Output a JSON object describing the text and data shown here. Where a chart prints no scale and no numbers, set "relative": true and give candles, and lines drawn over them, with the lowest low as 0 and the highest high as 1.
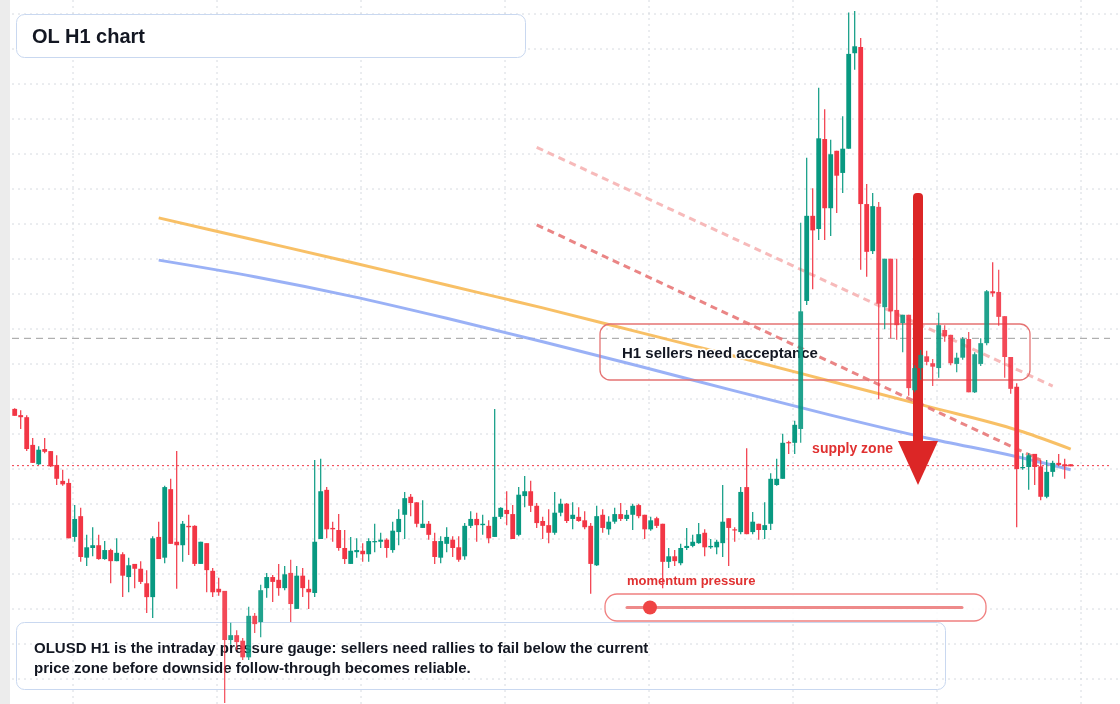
{
  "chart_data": {
    "type": "candlestick",
    "title": "OL H1 chart",
    "relative": true,
    "grid": true,
    "annotations": [
      "H1 sellers need acceptance",
      "supply zone",
      "momentum pressure",
      "OLUSD H1 is the intraday pressure gauge: sellers need rallies to fail below the current price zone before downside follow-through becomes reliable."
    ],
    "ref_lines": [
      {
        "axis": "y",
        "value": 0.527,
        "color": "#9e9e9e",
        "line_style": "dashed"
      },
      {
        "axis": "y",
        "value": 0.343,
        "color": "#f23645",
        "line_style": "dotted"
      }
    ],
    "categories": [
      null,
      null,
      null,
      null,
      null,
      null,
      null,
      null,
      null,
      null,
      null,
      null,
      null,
      null,
      null,
      null,
      null,
      null,
      null,
      null,
      null,
      null,
      null,
      null,
      null,
      null,
      null,
      null,
      null,
      null,
      null,
      null,
      null,
      null,
      null,
      null,
      null,
      null,
      null,
      null,
      null,
      null,
      null,
      null,
      null,
      null,
      null,
      null,
      null,
      null,
      null,
      null,
      null,
      null,
      null,
      null,
      null,
      null,
      null,
      null,
      null,
      null,
      null,
      null,
      null,
      null,
      null,
      null,
      null,
      null,
      null,
      null,
      null,
      null,
      null,
      null,
      null,
      null,
      null,
      null,
      null,
      null,
      null,
      null,
      null,
      null,
      null,
      null,
      null,
      null,
      null,
      null,
      null,
      null,
      null,
      null,
      null,
      null,
      null,
      null,
      null,
      null,
      null,
      null,
      null,
      null,
      null,
      null,
      null,
      null,
      null,
      null,
      null,
      null,
      null,
      null,
      null,
      null,
      null,
      null,
      null,
      null,
      null,
      null,
      null,
      null,
      null,
      null,
      null,
      null,
      null,
      null,
      null,
      null,
      null,
      null,
      null,
      null,
      null,
      null,
      null,
      null,
      null,
      null,
      null,
      null,
      null,
      null,
      null,
      null,
      null,
      null,
      null,
      null,
      null,
      null,
      null,
      null,
      null,
      null,
      null,
      null,
      null,
      null,
      null,
      null,
      null,
      null,
      null,
      null,
      null,
      null,
      null,
      null,
      null,
      null,
      null
    ],
    "ohlc": [
      [
        0.425,
        0.426,
        0.415,
        0.415
      ],
      [
        0.416,
        0.423,
        0.396,
        0.413
      ],
      [
        0.413,
        0.416,
        0.364,
        0.367
      ],
      [
        0.373,
        0.383,
        0.347,
        0.347
      ],
      [
        0.345,
        0.371,
        0.344,
        0.366
      ],
      [
        0.367,
        0.383,
        0.361,
        0.363
      ],
      [
        0.364,
        0.364,
        0.341,
        0.342
      ],
      [
        0.344,
        0.358,
        0.315,
        0.324
      ],
      [
        0.321,
        0.337,
        0.314,
        0.316
      ],
      [
        0.318,
        0.324,
        0.238,
        0.238
      ],
      [
        0.24,
        0.286,
        0.233,
        0.266
      ],
      [
        0.27,
        0.282,
        0.204,
        0.211
      ],
      [
        0.21,
        0.243,
        0.198,
        0.225
      ],
      [
        0.224,
        0.254,
        0.212,
        0.228
      ],
      [
        0.228,
        0.243,
        0.207,
        0.208
      ],
      [
        0.208,
        0.234,
        0.207,
        0.221
      ],
      [
        0.221,
        0.223,
        0.173,
        0.205
      ],
      [
        0.205,
        0.238,
        0.205,
        0.217
      ],
      [
        0.215,
        0.218,
        0.153,
        0.184
      ],
      [
        0.182,
        0.21,
        0.16,
        0.199
      ],
      [
        0.201,
        0.201,
        0.166,
        0.194
      ],
      [
        0.194,
        0.205,
        0.172,
        0.175
      ],
      [
        0.173,
        0.192,
        0.13,
        0.153
      ],
      [
        0.153,
        0.241,
        0.123,
        0.238
      ],
      [
        0.24,
        0.262,
        0.208,
        0.208
      ],
      [
        0.21,
        0.314,
        0.202,
        0.312
      ],
      [
        0.309,
        0.324,
        0.23,
        0.23
      ],
      [
        0.233,
        0.364,
        0.165,
        0.228
      ],
      [
        0.228,
        0.263,
        0.204,
        0.259
      ],
      [
        0.256,
        0.272,
        0.214,
        0.254
      ],
      [
        0.256,
        0.257,
        0.198,
        0.201
      ],
      [
        0.201,
        0.233,
        0.201,
        0.233
      ],
      [
        0.231,
        0.231,
        0.16,
        0.192
      ],
      [
        0.191,
        0.195,
        0.153,
        0.16
      ],
      [
        0.165,
        0.181,
        0.155,
        0.16
      ],
      [
        0.162,
        0.162,
        0,
        0.091
      ],
      [
        0.091,
        0.116,
        0.084,
        0.098
      ],
      [
        0.098,
        0.105,
        0.077,
        0.088
      ],
      [
        0.09,
        0.094,
        0.062,
        0.066
      ],
      [
        0.066,
        0.139,
        0.062,
        0.126
      ],
      [
        0.126,
        0.13,
        0.101,
        0.114
      ],
      [
        0.117,
        0.171,
        0.095,
        0.163
      ],
      [
        0.166,
        0.188,
        0.152,
        0.182
      ],
      [
        0.182,
        0.185,
        0.146,
        0.175
      ],
      [
        0.178,
        0.201,
        0.155,
        0.166
      ],
      [
        0.166,
        0.198,
        0.163,
        0.186
      ],
      [
        0.188,
        0.207,
        0.117,
        0.143
      ],
      [
        0.136,
        0.198,
        0.136,
        0.184
      ],
      [
        0.184,
        0.195,
        0.153,
        0.166
      ],
      [
        0.165,
        0.178,
        0.136,
        0.16
      ],
      [
        0.159,
        0.351,
        0.153,
        0.233
      ],
      [
        0.237,
        0.353,
        0.237,
        0.306
      ],
      [
        0.308,
        0.312,
        0.238,
        0.251
      ],
      [
        0.253,
        0.262,
        0.233,
        0.251
      ],
      [
        0.25,
        0.273,
        0.22,
        0.224
      ],
      [
        0.224,
        0.25,
        0.201,
        0.208
      ],
      [
        0.201,
        0.24,
        0.201,
        0.22
      ],
      [
        0.218,
        0.238,
        0.21,
        0.221
      ],
      [
        0.22,
        0.231,
        0.204,
        0.215
      ],
      [
        0.215,
        0.238,
        0.204,
        0.234
      ],
      [
        0.233,
        0.259,
        0.218,
        0.234
      ],
      [
        0.233,
        0.246,
        0.224,
        0.236
      ],
      [
        0.236,
        0.238,
        0.21,
        0.224
      ],
      [
        0.221,
        0.262,
        0.217,
        0.249
      ],
      [
        0.247,
        0.28,
        0.228,
        0.266
      ],
      [
        0.272,
        0.305,
        0.237,
        0.296
      ],
      [
        0.298,
        0.302,
        0.27,
        0.289
      ],
      [
        0.29,
        0.29,
        0.254,
        0.259
      ],
      [
        0.253,
        0.293,
        0.253,
        0.259
      ],
      [
        0.259,
        0.263,
        0.236,
        0.243
      ],
      [
        0.234,
        0.246,
        0.201,
        0.211
      ],
      [
        0.21,
        0.241,
        0.202,
        0.234
      ],
      [
        0.23,
        0.254,
        0.218,
        0.24
      ],
      [
        0.236,
        0.241,
        0.211,
        0.224
      ],
      [
        0.225,
        0.241,
        0.204,
        0.207
      ],
      [
        0.212,
        0.26,
        0.207,
        0.256
      ],
      [
        0.256,
        0.277,
        0.253,
        0.266
      ],
      [
        0.266,
        0.275,
        0.233,
        0.257
      ],
      [
        0.257,
        0.272,
        0.243,
        0.259
      ],
      [
        0.256,
        0.264,
        0.231,
        0.238
      ],
      [
        0.24,
        0.425,
        0.24,
        0.269
      ],
      [
        0.269,
        0.283,
        0.266,
        0.282
      ],
      [
        0.279,
        0.306,
        0.257,
        0.273
      ],
      [
        0.273,
        0.286,
        0.237,
        0.237
      ],
      [
        0.243,
        0.312,
        0.241,
        0.301
      ],
      [
        0.299,
        0.328,
        0.283,
        0.306
      ],
      [
        0.306,
        0.321,
        0.276,
        0.285
      ],
      [
        0.285,
        0.289,
        0.253,
        0.26
      ],
      [
        0.263,
        0.269,
        0.237,
        0.256
      ],
      [
        0.257,
        0.28,
        0.231,
        0.246
      ],
      [
        0.246,
        0.305,
        0.243,
        0.275
      ],
      [
        0.275,
        0.295,
        0.27,
        0.288
      ],
      [
        0.288,
        0.289,
        0.26,
        0.263
      ],
      [
        0.266,
        0.29,
        0.251,
        0.272
      ],
      [
        0.269,
        0.283,
        0.262,
        0.263
      ],
      [
        0.264,
        0.277,
        0.251,
        0.254
      ],
      [
        0.256,
        0.26,
        0.158,
        0.201
      ],
      [
        0.199,
        0.285,
        0.198,
        0.27
      ],
      [
        0.272,
        0.28,
        0.246,
        0.253
      ],
      [
        0.251,
        0.27,
        0.243,
        0.262
      ],
      [
        0.262,
        0.282,
        0.259,
        0.273
      ],
      [
        0.273,
        0.289,
        0.263,
        0.266
      ],
      [
        0.266,
        0.279,
        0.263,
        0.272
      ],
      [
        0.272,
        0.288,
        0.25,
        0.285
      ],
      [
        0.286,
        0.288,
        0.267,
        0.27
      ],
      [
        0.272,
        0.272,
        0.237,
        0.251
      ],
      [
        0.251,
        0.269,
        0.249,
        0.264
      ],
      [
        0.267,
        0.269,
        0.253,
        0.256
      ],
      [
        0.259,
        0.259,
        0.166,
        0.204
      ],
      [
        0.204,
        0.224,
        0.195,
        0.212
      ],
      [
        0.212,
        0.221,
        0.198,
        0.205
      ],
      [
        0.202,
        0.23,
        0.199,
        0.224
      ],
      [
        0.224,
        0.253,
        0.221,
        0.227
      ],
      [
        0.227,
        0.243,
        0.225,
        0.233
      ],
      [
        0.231,
        0.26,
        0.23,
        0.244
      ],
      [
        0.246,
        0.251,
        0.212,
        0.225
      ],
      [
        0.225,
        0.237,
        0.223,
        0.227
      ],
      [
        0.225,
        0.236,
        0.215,
        0.233
      ],
      [
        0.231,
        0.315,
        0.211,
        0.262
      ],
      [
        0.267,
        0.267,
        0.198,
        0.253
      ],
      [
        0.251,
        0.254,
        0.233,
        0.25
      ],
      [
        0.247,
        0.312,
        0.244,
        0.305
      ],
      [
        0.312,
        0.368,
        0.244,
        0.244
      ],
      [
        0.247,
        0.276,
        0.244,
        0.262
      ],
      [
        0.259,
        0.259,
        0.236,
        0.25
      ],
      [
        0.25,
        0.29,
        0.237,
        0.257
      ],
      [
        0.259,
        0.332,
        0.25,
        0.324
      ],
      [
        0.315,
        0.353,
        0.314,
        0.324
      ],
      [
        0.324,
        0.389,
        0.324,
        0.376
      ],
      [
        0.377,
        0.379,
        0.36,
        0.376
      ],
      [
        0.376,
        0.408,
        0.36,
        0.402
      ],
      [
        0.396,
        0.694,
        0.376,
        0.566
      ],
      [
        0.581,
        0.788,
        0.575,
        0.704
      ],
      [
        0.704,
        0.744,
        0.598,
        0.683
      ],
      [
        0.685,
        0.889,
        0.669,
        0.816
      ],
      [
        0.815,
        0.858,
        0.669,
        0.715
      ],
      [
        0.715,
        0.814,
        0.675,
        0.793
      ],
      [
        0.798,
        0.798,
        0.708,
        0.762
      ],
      [
        0.766,
        0.848,
        0.737,
        0.801
      ],
      [
        0.801,
        0.998,
        0.801,
        0.938
      ],
      [
        0.939,
        1,
        0.915,
        0.949
      ],
      [
        0.948,
        0.961,
        0.626,
        0.721
      ],
      [
        0.721,
        0.75,
        0.616,
        0.652
      ],
      [
        0.653,
        0.737,
        0.649,
        0.718
      ],
      [
        0.717,
        0.724,
        0.439,
        0.577
      ],
      [
        0.572,
        0.642,
        0.54,
        0.642
      ],
      [
        0.642,
        0.642,
        0.527,
        0.566
      ],
      [
        0.568,
        0.642,
        0.525,
        0.546
      ],
      [
        0.549,
        0.561,
        0.507,
        0.561
      ],
      [
        0.561,
        0.561,
        0.444,
        0.455
      ],
      [
        0.452,
        0.488,
        0.449,
        0.484
      ],
      [
        0.484,
        0.51,
        0.467,
        0.503
      ],
      [
        0.501,
        0.509,
        0.488,
        0.493
      ],
      [
        0.491,
        0.497,
        0.458,
        0.486
      ],
      [
        0.484,
        0.564,
        0.47,
        0.546
      ],
      [
        0.539,
        0.546,
        0.522,
        0.53
      ],
      [
        0.532,
        0.532,
        0.488,
        0.491
      ],
      [
        0.49,
        0.506,
        0.478,
        0.499
      ],
      [
        0.499,
        0.529,
        0.496,
        0.526
      ],
      [
        0.526,
        0.536,
        0.449,
        0.449
      ],
      [
        0.449,
        0.507,
        0.448,
        0.504
      ],
      [
        0.49,
        0.527,
        0.487,
        0.52
      ],
      [
        0.52,
        0.597,
        0.517,
        0.595
      ],
      [
        0.595,
        0.637,
        0.587,
        0.592
      ],
      [
        0.594,
        0.626,
        0.545,
        0.558
      ],
      [
        0.559,
        0.559,
        0.47,
        0.5
      ],
      [
        0.5,
        0.5,
        0.447,
        0.454
      ],
      [
        0.457,
        0.462,
        0.254,
        0.338
      ],
      [
        0.34,
        0.361,
        0.337,
        0.341
      ],
      [
        0.341,
        0.361,
        0.308,
        0.358
      ],
      [
        0.36,
        0.36,
        0.315,
        0.341
      ],
      [
        0.342,
        0.351,
        0.293,
        0.298
      ],
      [
        0.298,
        0.351,
        0.296,
        0.334
      ],
      [
        0.334,
        0.35,
        0.327,
        0.347
      ],
      [
        0.347,
        0.36,
        0.342,
        0.344
      ],
      [
        0.345,
        0.353,
        0.324,
        0.342
      ],
      [
        0.345,
        0.345,
        0.342,
        0.342
      ]
    ],
    "series": [
      {
        "type": "line",
        "color": "#f7b955",
        "values": [
          null,
          null,
          null,
          null,
          null,
          null,
          null,
          null,
          null,
          null,
          null,
          null,
          null,
          null,
          null,
          null,
          null,
          null,
          null,
          null,
          null,
          null,
          null,
          null,
          0.701,
          null,
          null,
          null,
          null,
          null,
          null,
          null,
          null,
          null,
          null,
          null,
          null,
          null,
          null,
          null,
          0.669,
          null,
          null,
          null,
          null,
          null,
          null,
          null,
          null,
          null,
          null,
          null,
          null,
          null,
          null,
          null,
          0.637,
          null,
          null,
          null,
          null,
          null,
          null,
          null,
          null,
          null,
          null,
          null,
          null,
          null,
          null,
          null,
          0.604,
          null,
          null,
          null,
          null,
          null,
          null,
          null,
          null,
          null,
          null,
          null,
          null,
          null,
          null,
          null,
          0.571,
          null,
          null,
          null,
          null,
          null,
          null,
          null,
          null,
          null,
          null,
          null,
          null,
          null,
          null,
          null,
          0.536,
          null,
          null,
          null,
          null,
          null,
          null,
          null,
          null,
          null,
          null,
          null,
          null,
          null,
          null,
          null,
          0.501,
          null,
          null,
          null,
          null,
          null,
          null,
          null,
          null,
          null,
          null,
          null,
          null,
          null,
          null,
          null,
          0.465,
          null,
          null,
          null,
          null,
          null,
          null,
          null,
          null,
          null,
          null,
          null,
          null,
          null,
          null,
          null,
          0.429,
          null,
          null,
          null,
          null,
          null,
          null,
          null,
          null,
          null,
          null,
          null,
          null,
          null,
          null,
          null,
          0.392,
          null,
          null,
          null,
          null,
          null,
          null,
          null,
          0.367
        ]
      },
      {
        "type": "line",
        "color": "#8fa9f5",
        "values": [
          null,
          null,
          null,
          null,
          null,
          null,
          null,
          null,
          null,
          null,
          null,
          null,
          null,
          null,
          null,
          null,
          null,
          null,
          null,
          null,
          null,
          null,
          null,
          null,
          0.64,
          null,
          null,
          null,
          null,
          null,
          null,
          null,
          null,
          null,
          null,
          null,
          null,
          null,
          null,
          null,
          0.616,
          null,
          null,
          null,
          null,
          null,
          null,
          null,
          null,
          null,
          null,
          null,
          null,
          null,
          null,
          null,
          0.588,
          null,
          null,
          null,
          null,
          null,
          null,
          null,
          null,
          null,
          null,
          null,
          null,
          null,
          null,
          null,
          0.556,
          null,
          null,
          null,
          null,
          null,
          null,
          null,
          null,
          null,
          null,
          null,
          null,
          null,
          null,
          null,
          0.522,
          null,
          null,
          null,
          null,
          null,
          null,
          null,
          null,
          null,
          null,
          null,
          null,
          null,
          null,
          null,
          0.487,
          null,
          null,
          null,
          null,
          null,
          null,
          null,
          null,
          null,
          null,
          null,
          null,
          null,
          null,
          null,
          0.451,
          null,
          null,
          null,
          null,
          null,
          null,
          null,
          null,
          null,
          null,
          null,
          null,
          null,
          null,
          null,
          0.416,
          null,
          null,
          null,
          null,
          null,
          null,
          null,
          null,
          null,
          null,
          null,
          null,
          null,
          null,
          null,
          0.383,
          null,
          null,
          null,
          null,
          null,
          null,
          null,
          null,
          null,
          null,
          null,
          null,
          null,
          null,
          null,
          0.354,
          null,
          null,
          null,
          null,
          null,
          null,
          null,
          0.337
        ]
      },
      {
        "type": "line",
        "color": "#f6b3b3",
        "line_style": "dashed",
        "values": [
          null,
          null,
          null,
          null,
          null,
          null,
          null,
          null,
          null,
          null,
          null,
          null,
          null,
          null,
          null,
          null,
          null,
          null,
          null,
          null,
          null,
          null,
          null,
          null,
          null,
          null,
          null,
          null,
          null,
          null,
          null,
          null,
          null,
          null,
          null,
          null,
          null,
          null,
          null,
          null,
          null,
          null,
          null,
          null,
          null,
          null,
          null,
          null,
          null,
          null,
          null,
          null,
          null,
          null,
          null,
          null,
          null,
          null,
          null,
          null,
          null,
          null,
          null,
          null,
          null,
          null,
          null,
          null,
          null,
          null,
          null,
          null,
          null,
          null,
          null,
          null,
          null,
          null,
          null,
          null,
          null,
          null,
          null,
          null,
          null,
          null,
          null,
          0.803,
          null,
          null,
          null,
          null,
          null,
          null,
          null,
          null,
          null,
          null,
          null,
          null,
          null,
          null,
          null,
          null,
          null,
          null,
          null,
          null,
          null,
          null,
          null,
          null,
          null,
          null,
          null,
          null,
          null,
          null,
          null,
          null,
          null,
          null,
          null,
          null,
          null,
          null,
          null,
          null,
          null,
          null,
          null,
          null,
          null,
          null,
          null,
          null,
          null,
          null,
          null,
          null,
          null,
          null,
          null,
          null,
          null,
          null,
          null,
          null,
          null,
          null,
          null,
          null,
          null,
          null,
          null,
          null,
          null,
          null,
          null,
          null,
          null,
          null,
          null,
          null,
          null,
          null,
          null,
          null,
          null,
          null,
          null,
          null,
          null,
          0.458,
          null,
          null,
          null
        ]
      },
      {
        "type": "line",
        "color": "#e87878",
        "line_style": "dashed",
        "values": [
          null,
          null,
          null,
          null,
          null,
          null,
          null,
          null,
          null,
          null,
          null,
          null,
          null,
          null,
          null,
          null,
          null,
          null,
          null,
          null,
          null,
          null,
          null,
          null,
          null,
          null,
          null,
          null,
          null,
          null,
          null,
          null,
          null,
          null,
          null,
          null,
          null,
          null,
          null,
          null,
          null,
          null,
          null,
          null,
          null,
          null,
          null,
          null,
          null,
          null,
          null,
          null,
          null,
          null,
          null,
          null,
          null,
          null,
          null,
          null,
          null,
          null,
          null,
          null,
          null,
          null,
          null,
          null,
          null,
          null,
          null,
          null,
          null,
          null,
          null,
          null,
          null,
          null,
          null,
          null,
          null,
          null,
          null,
          null,
          null,
          null,
          null,
          0.691,
          null,
          null,
          null,
          null,
          null,
          null,
          null,
          null,
          null,
          null,
          null,
          null,
          null,
          null,
          null,
          null,
          null,
          null,
          null,
          null,
          null,
          null,
          null,
          null,
          null,
          null,
          null,
          null,
          null,
          null,
          null,
          null,
          null,
          null,
          null,
          null,
          null,
          null,
          null,
          null,
          null,
          null,
          null,
          null,
          null,
          null,
          null,
          null,
          null,
          null,
          null,
          null,
          null,
          null,
          null,
          null,
          null,
          null,
          null,
          null,
          null,
          null,
          null,
          null,
          null,
          null,
          null,
          null,
          null,
          null,
          null,
          null,
          null,
          null,
          null,
          null,
          null,
          null,
          null,
          null,
          null,
          null,
          null,
          0.351,
          null,
          null,
          null,
          null,
          null
        ]
      }
    ]
  }
}
